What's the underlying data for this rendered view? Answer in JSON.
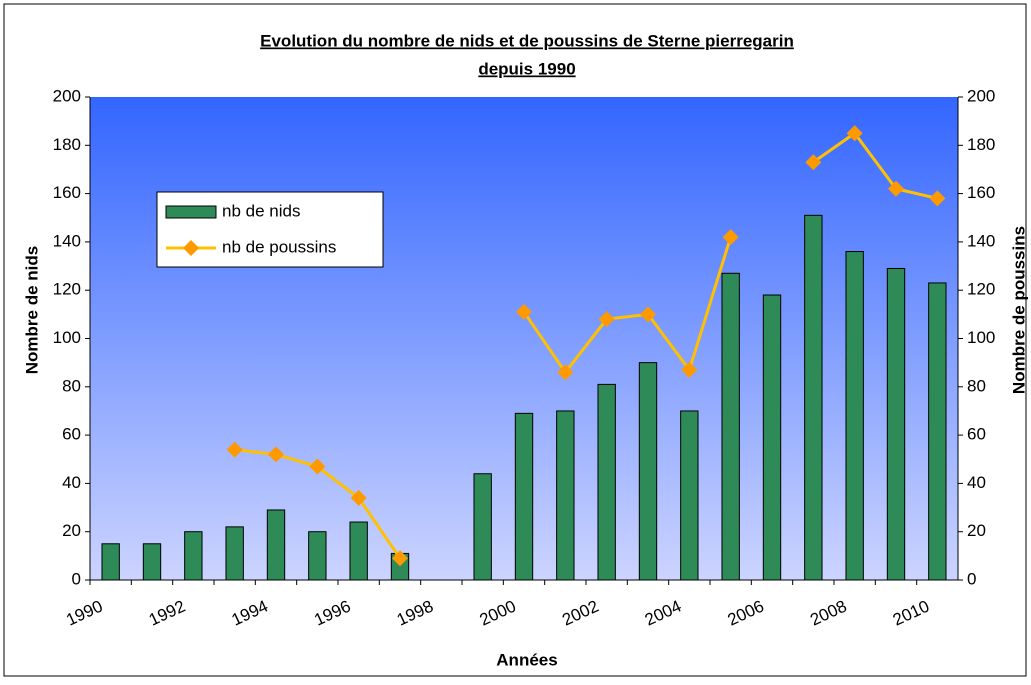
{
  "chart_data": {
    "type": "bar_line",
    "title": [
      "Evolution du nombre de nids et de poussins de Sterne pierregarin",
      "depuis 1990"
    ],
    "x_label": "Années",
    "y_label": "Nombre de nids",
    "y2_label": "Nombre de poussins",
    "categories": [
      "1990",
      null,
      "1992",
      null,
      "1994",
      null,
      "1996",
      null,
      "1998",
      null,
      "2000",
      null,
      "2002",
      null,
      "2004",
      null,
      "2006",
      null,
      "2008",
      null,
      "2010"
    ],
    "series": [
      {
        "name": "nb de nids",
        "type": "bar",
        "color": "#2e8b57",
        "values": [
          15,
          15,
          20,
          22,
          29,
          20,
          24,
          11,
          null,
          44,
          69,
          70,
          81,
          90,
          70,
          127,
          118,
          151,
          136,
          129,
          123
        ]
      },
      {
        "name": "nb de poussins",
        "type": "line",
        "axis": "y2",
        "color": "#ffc000",
        "marker_color": "#ff9900",
        "values": [
          null,
          null,
          null,
          54,
          52,
          47,
          34,
          9,
          null,
          null,
          111,
          86,
          108,
          110,
          87,
          142,
          null,
          173,
          185,
          162,
          158
        ]
      }
    ],
    "ylim": [
      0,
      200
    ],
    "yticks": [
      0,
      20,
      40,
      60,
      80,
      100,
      120,
      140,
      160,
      180,
      200
    ],
    "y2lim": [
      0,
      200
    ],
    "y2ticks": [
      0,
      20,
      40,
      60,
      80,
      100,
      120,
      140,
      160,
      180,
      200
    ]
  }
}
